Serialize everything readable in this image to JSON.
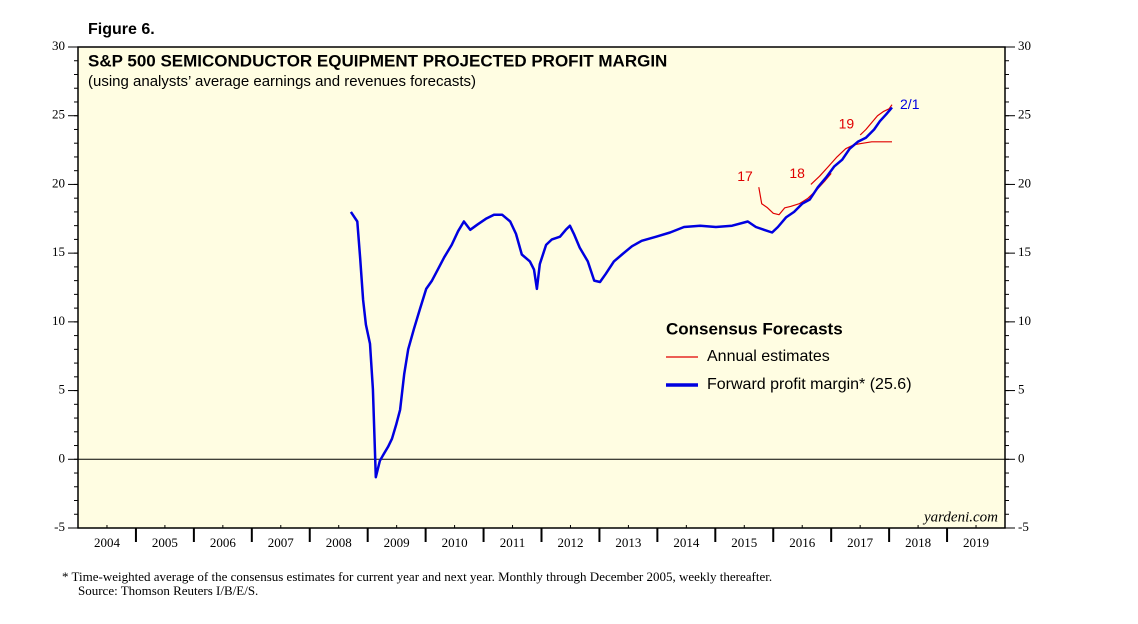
{
  "chart_data": {
    "type": "line",
    "figure_label": "Figure 6.",
    "title": "S&P 500 SEMICONDUCTOR EQUIPMENT PROJECTED PROFIT MARGIN",
    "subtitle": "(using analysts’ average earnings and revenues forecasts)",
    "source_mark": "yardeni.com",
    "footnote": "*   Time-weighted average of the consensus estimates for current year and next year. Monthly through December 2005, weekly thereafter.",
    "source": "Source: Thomson Reuters I/B/E/S.",
    "annotations": [
      "2/1"
    ],
    "xlim": [
      2004,
      2020
    ],
    "xticks": [
      {
        "value": 2004.5,
        "label": "2004"
      },
      {
        "value": 2005.5,
        "label": "2005"
      },
      {
        "value": 2006.5,
        "label": "2006"
      },
      {
        "value": 2007.5,
        "label": "2007"
      },
      {
        "value": 2008.5,
        "label": "2008"
      },
      {
        "value": 2009.5,
        "label": "2009"
      },
      {
        "value": 2010.5,
        "label": "2010"
      },
      {
        "value": 2011.5,
        "label": "2011"
      },
      {
        "value": 2012.5,
        "label": "2012"
      },
      {
        "value": 2013.5,
        "label": "2013"
      },
      {
        "value": 2014.5,
        "label": "2014"
      },
      {
        "value": 2015.5,
        "label": "2015"
      },
      {
        "value": 2016.5,
        "label": "2016"
      },
      {
        "value": 2017.5,
        "label": "2017"
      },
      {
        "value": 2018.5,
        "label": "2018"
      },
      {
        "value": 2019.5,
        "label": "2019"
      }
    ],
    "ylim": [
      -5,
      30
    ],
    "yticks": [
      -5,
      0,
      5,
      10,
      15,
      20,
      25,
      30
    ],
    "legend": {
      "title": "Consensus Forecasts",
      "entries": [
        {
          "label": "Annual estimates",
          "color": "#e00000"
        },
        {
          "label": "Forward profit margin* (25.6)",
          "color": "#0000e0"
        }
      ]
    },
    "series": [
      {
        "name": "17",
        "color": "#e00000",
        "x": [
          2015.75,
          2015.8,
          2015.9,
          2016.0,
          2016.1,
          2016.2,
          2016.3,
          2016.45,
          2016.6,
          2016.75,
          2016.9,
          2017.0
        ],
        "values": [
          19.8,
          18.6,
          18.3,
          17.9,
          17.8,
          18.3,
          18.4,
          18.6,
          19.0,
          19.6,
          20.3,
          20.8
        ]
      },
      {
        "name": "18",
        "color": "#e00000",
        "x": [
          2016.65,
          2016.8,
          2016.95,
          2017.1,
          2017.25,
          2017.4,
          2017.55,
          2017.7,
          2017.85,
          2018.05
        ],
        "values": [
          20.0,
          20.6,
          21.3,
          22.0,
          22.6,
          22.9,
          23.0,
          23.1,
          23.1,
          23.1
        ]
      },
      {
        "name": "19",
        "color": "#e00000",
        "x": [
          2017.5,
          2017.6,
          2017.7,
          2017.8,
          2017.9,
          2018.0,
          2018.05
        ],
        "values": [
          23.6,
          24.0,
          24.5,
          25.0,
          25.3,
          25.5,
          25.8
        ]
      },
      {
        "name": "Forward profit margin",
        "color": "#0000e0",
        "x": [
          2008.71,
          2008.82,
          2008.87,
          2008.92,
          2008.97,
          2009.04,
          2009.09,
          2009.14,
          2009.21,
          2009.28,
          2009.35,
          2009.42,
          2009.49,
          2009.56,
          2009.63,
          2009.7,
          2009.8,
          2009.9,
          2010.01,
          2010.11,
          2010.21,
          2010.32,
          2010.45,
          2010.56,
          2010.66,
          2010.77,
          2010.9,
          2011.04,
          2011.18,
          2011.32,
          2011.46,
          2011.56,
          2011.66,
          2011.8,
          2011.87,
          2011.92,
          2011.97,
          2012.08,
          2012.18,
          2012.32,
          2012.42,
          2012.49,
          2012.56,
          2012.66,
          2012.8,
          2012.91,
          2013.01,
          2013.11,
          2013.25,
          2013.39,
          2013.56,
          2013.73,
          2013.98,
          2014.22,
          2014.46,
          2014.74,
          2015.01,
          2015.29,
          2015.56,
          2015.7,
          2015.84,
          2015.98,
          2016.08,
          2016.22,
          2016.36,
          2016.5,
          2016.63,
          2016.77,
          2016.91,
          2017.05,
          2017.19,
          2017.32,
          2017.46,
          2017.6,
          2017.74,
          2017.84,
          2017.95,
          2018.05
        ],
        "values": [
          18.0,
          17.3,
          14.6,
          11.6,
          9.8,
          8.4,
          5.1,
          -1.3,
          -0.1,
          0.4,
          0.9,
          1.5,
          2.5,
          3.6,
          6.2,
          8.0,
          9.5,
          10.9,
          12.4,
          13.0,
          13.8,
          14.7,
          15.6,
          16.6,
          17.3,
          16.7,
          17.1,
          17.5,
          17.8,
          17.8,
          17.3,
          16.4,
          14.9,
          14.4,
          13.8,
          12.4,
          14.2,
          15.6,
          16.0,
          16.2,
          16.7,
          17.0,
          16.4,
          15.4,
          14.4,
          13.0,
          12.9,
          13.5,
          14.4,
          14.9,
          15.5,
          15.9,
          16.2,
          16.5,
          16.9,
          17.0,
          16.9,
          17.0,
          17.3,
          16.9,
          16.7,
          16.5,
          16.9,
          17.6,
          18.0,
          18.6,
          18.9,
          19.8,
          20.5,
          21.3,
          21.8,
          22.6,
          23.1,
          23.4,
          24.0,
          24.6,
          25.1,
          25.6
        ]
      }
    ]
  }
}
